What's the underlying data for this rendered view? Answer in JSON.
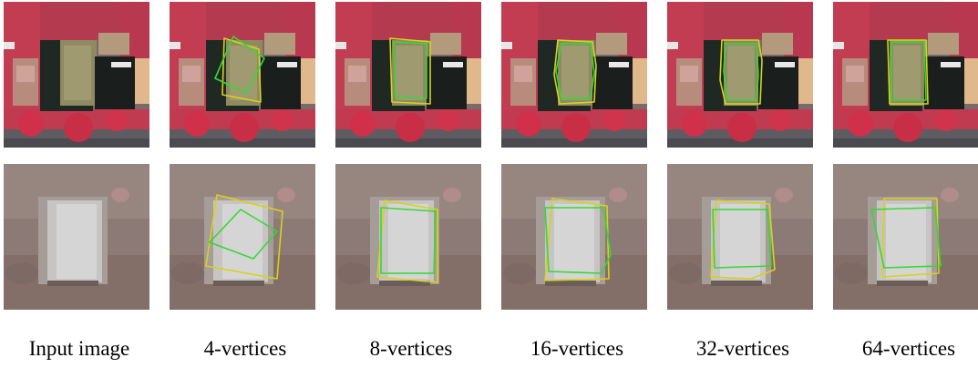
{
  "figure": {
    "captions": [
      "Input image",
      "4-vertices",
      "8-vertices",
      "16-vertices",
      "32-vertices",
      "64-vertices"
    ],
    "rows": [
      {
        "scene": "infrared-residential"
      },
      {
        "scene": "rgb-warehouse"
      }
    ],
    "colors": {
      "ground_truth": "#d7d21a",
      "prediction": "#36d836",
      "vegetation_ir": "#c8324a",
      "roof_tan": "#9a9268"
    }
  }
}
